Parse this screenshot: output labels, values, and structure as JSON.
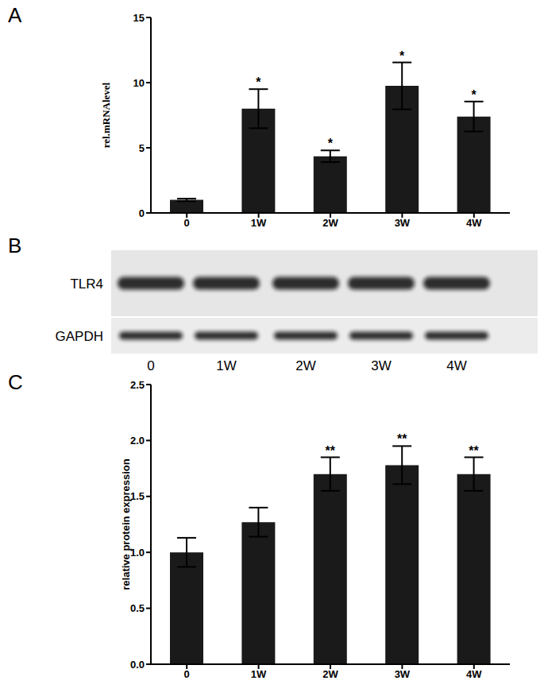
{
  "chart_data": [
    {
      "type": "bar",
      "title": "A",
      "ylabel": "rel.mRNAlevel",
      "categories": [
        "0",
        "1W",
        "2W",
        "3W",
        "4W"
      ],
      "values": [
        1.0,
        8.0,
        4.35,
        9.75,
        7.4
      ],
      "errors": [
        0.1,
        1.5,
        0.45,
        1.8,
        1.15
      ],
      "annotations": [
        null,
        "*",
        "*",
        "*",
        "*"
      ],
      "color": "#1a1a1a",
      "ylim": [
        0,
        15
      ],
      "yticks": [
        0,
        5,
        10,
        15
      ]
    },
    {
      "type": "western_blot",
      "title": "B",
      "rows": [
        "TLR4",
        "GAPDH"
      ],
      "categories": [
        "0",
        "1W",
        "2W",
        "3W",
        "4W"
      ]
    },
    {
      "type": "bar",
      "title": "C",
      "ylabel": "relative protein expression",
      "categories": [
        "0",
        "1W",
        "2W",
        "3W",
        "4W"
      ],
      "values": [
        1.0,
        1.27,
        1.7,
        1.78,
        1.7
      ],
      "errors": [
        0.13,
        0.13,
        0.15,
        0.17,
        0.15
      ],
      "annotations": [
        null,
        null,
        "**",
        "**",
        "**"
      ],
      "color": "#1a1a1a",
      "ylim": [
        0,
        2.5
      ],
      "yticks": [
        {
          "value": 0,
          "label": "0.0"
        },
        0.5,
        {
          "value": 1,
          "label": "1.0"
        },
        1.5,
        {
          "value": 2,
          "label": "2.0"
        },
        2.5
      ]
    }
  ]
}
